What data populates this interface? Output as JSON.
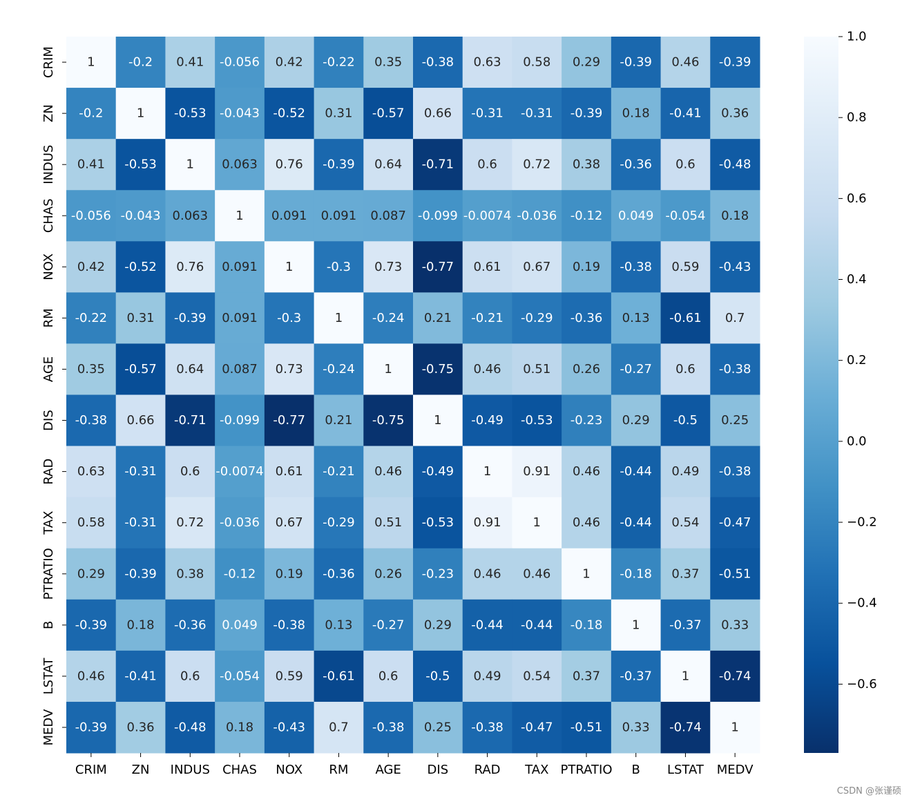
{
  "chart_data": {
    "type": "heatmap",
    "title": "",
    "xlabel": "",
    "ylabel": "",
    "colormap": "Blues_r",
    "color_range": [
      -0.77,
      1.0
    ],
    "labels": [
      "CRIM",
      "ZN",
      "INDUS",
      "CHAS",
      "NOX",
      "RM",
      "AGE",
      "DIS",
      "RAD",
      "TAX",
      "PTRATIO",
      "B",
      "LSTAT",
      "MEDV"
    ],
    "values": [
      [
        1,
        -0.2,
        0.41,
        -0.056,
        0.42,
        -0.22,
        0.35,
        -0.38,
        0.63,
        0.58,
        0.29,
        -0.39,
        0.46,
        -0.39
      ],
      [
        -0.2,
        1,
        -0.53,
        -0.043,
        -0.52,
        0.31,
        -0.57,
        0.66,
        -0.31,
        -0.31,
        -0.39,
        0.18,
        -0.41,
        0.36
      ],
      [
        0.41,
        -0.53,
        1,
        0.063,
        0.76,
        -0.39,
        0.64,
        -0.71,
        0.6,
        0.72,
        0.38,
        -0.36,
        0.6,
        -0.48
      ],
      [
        -0.056,
        -0.043,
        0.063,
        1,
        0.091,
        0.091,
        0.087,
        -0.099,
        -0.0074,
        -0.036,
        -0.12,
        0.049,
        -0.054,
        0.18
      ],
      [
        0.42,
        -0.52,
        0.76,
        0.091,
        1,
        -0.3,
        0.73,
        -0.77,
        0.61,
        0.67,
        0.19,
        -0.38,
        0.59,
        -0.43
      ],
      [
        -0.22,
        0.31,
        -0.39,
        0.091,
        -0.3,
        1,
        -0.24,
        0.21,
        -0.21,
        -0.29,
        -0.36,
        0.13,
        -0.61,
        0.7
      ],
      [
        0.35,
        -0.57,
        0.64,
        0.087,
        0.73,
        -0.24,
        1,
        -0.75,
        0.46,
        0.51,
        0.26,
        -0.27,
        0.6,
        -0.38
      ],
      [
        -0.38,
        0.66,
        -0.71,
        -0.099,
        -0.77,
        0.21,
        -0.75,
        1,
        -0.49,
        -0.53,
        -0.23,
        0.29,
        -0.5,
        0.25
      ],
      [
        0.63,
        -0.31,
        0.6,
        -0.0074,
        0.61,
        -0.21,
        0.46,
        -0.49,
        1,
        0.91,
        0.46,
        -0.44,
        0.49,
        -0.38
      ],
      [
        0.58,
        -0.31,
        0.72,
        -0.036,
        0.67,
        -0.29,
        0.51,
        -0.53,
        0.91,
        1,
        0.46,
        -0.44,
        0.54,
        -0.47
      ],
      [
        0.29,
        -0.39,
        0.38,
        -0.12,
        0.19,
        -0.36,
        0.26,
        -0.23,
        0.46,
        0.46,
        1,
        -0.18,
        0.37,
        -0.51
      ],
      [
        -0.39,
        0.18,
        -0.36,
        0.049,
        -0.38,
        0.13,
        -0.27,
        0.29,
        -0.44,
        -0.44,
        -0.18,
        1,
        -0.37,
        0.33
      ],
      [
        0.46,
        -0.41,
        0.6,
        -0.054,
        0.59,
        -0.61,
        0.6,
        -0.5,
        0.49,
        0.54,
        0.37,
        -0.37,
        1,
        -0.74
      ],
      [
        -0.39,
        0.36,
        -0.48,
        0.18,
        -0.43,
        0.7,
        -0.38,
        0.25,
        -0.38,
        -0.47,
        -0.51,
        0.33,
        -0.74,
        1
      ]
    ],
    "colorbar": {
      "ticks": [
        1.0,
        0.8,
        0.6,
        0.4,
        0.2,
        0.0,
        -0.2,
        -0.4,
        -0.6
      ],
      "tick_labels": [
        "1.0",
        "0.8",
        "0.6",
        "0.4",
        "0.2",
        "0.0",
        "−0.2",
        "−0.4",
        "−0.6"
      ]
    }
  },
  "watermark": "CSDN @张谨硕"
}
